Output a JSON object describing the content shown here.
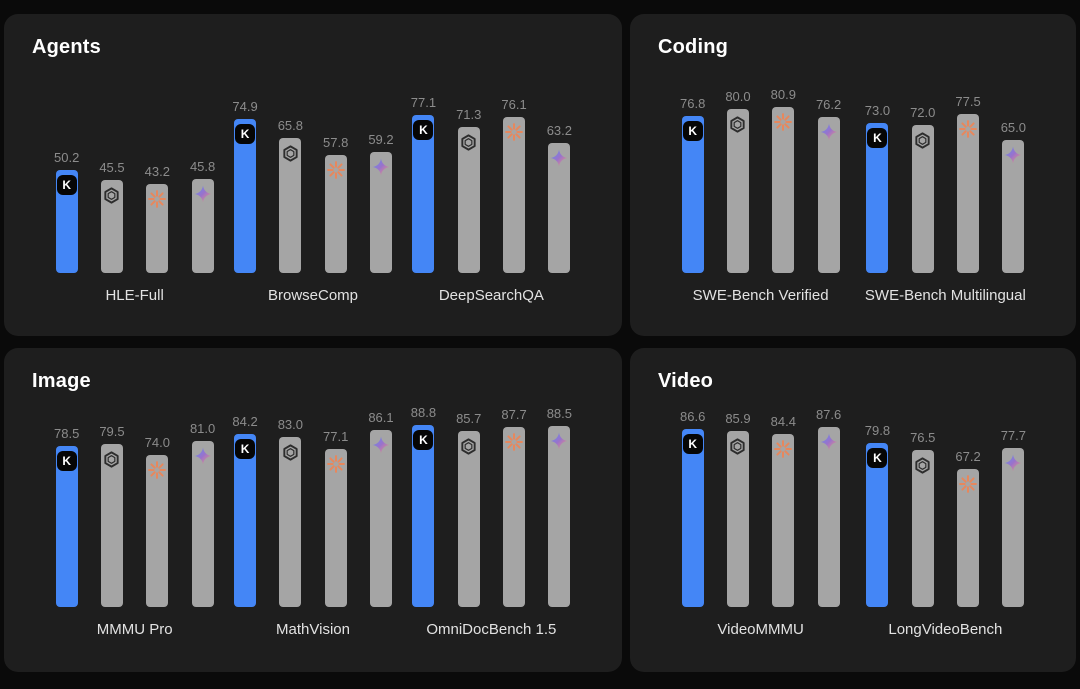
{
  "colors": {
    "page_bg": "#0a0a0a",
    "panel_bg": "#1e1e1e",
    "bar_blue": "#4486f6",
    "bar_gray": "#a5a5a5",
    "value_text": "#8c8c8c",
    "label_text": "#e2e2e2",
    "title_text": "#ffffff",
    "openai_dark": "#2d2d2d",
    "claude_orange": "#e8875c",
    "gemini_blue": "#5b8def",
    "gemini_purple": "#9b72cb",
    "gemini_orange": "#f49c74"
  },
  "models": [
    {
      "id": "kimi",
      "icon": "kimi-k-logo",
      "bar_color": "#4486f6",
      "letter": "K"
    },
    {
      "id": "openai",
      "icon": "openai-logo",
      "bar_color": "#a5a5a5"
    },
    {
      "id": "claude",
      "icon": "claude-sunburst-icon",
      "bar_color": "#a5a5a5"
    },
    {
      "id": "gemini",
      "icon": "gemini-star-icon",
      "bar_color": "#a5a5a5"
    }
  ],
  "chart_data": [
    {
      "type": "bar",
      "title": "Agents",
      "ylim": [
        0,
        100
      ],
      "grid": false,
      "legend_position": "none",
      "series_icons": [
        "kimi-k-logo",
        "openai-logo",
        "claude-sunburst-icon",
        "gemini-star-icon"
      ],
      "groups": [
        {
          "label": "HLE-Full",
          "values": [
            50.2,
            45.5,
            43.2,
            45.8
          ]
        },
        {
          "label": "BrowseComp",
          "values": [
            74.9,
            65.8,
            57.8,
            59.2
          ]
        },
        {
          "label": "DeepSearchQA",
          "values": [
            77.1,
            71.3,
            76.1,
            63.2
          ]
        }
      ]
    },
    {
      "type": "bar",
      "title": "Coding",
      "ylim": [
        0,
        100
      ],
      "grid": false,
      "legend_position": "none",
      "series_icons": [
        "kimi-k-logo",
        "openai-logo",
        "claude-sunburst-icon",
        "gemini-star-icon"
      ],
      "groups": [
        {
          "label": "SWE-Bench Verified",
          "values": [
            76.8,
            80.0,
            80.9,
            76.2
          ]
        },
        {
          "label": "SWE-Bench Multilingual",
          "values": [
            73.0,
            72.0,
            77.5,
            65.0
          ]
        }
      ]
    },
    {
      "type": "bar",
      "title": "Image",
      "ylim": [
        0,
        100
      ],
      "grid": false,
      "legend_position": "none",
      "series_icons": [
        "kimi-k-logo",
        "openai-logo",
        "claude-sunburst-icon",
        "gemini-star-icon"
      ],
      "groups": [
        {
          "label": "MMMU Pro",
          "values": [
            78.5,
            79.5,
            74.0,
            81.0
          ]
        },
        {
          "label": "MathVision",
          "values": [
            84.2,
            83.0,
            77.1,
            86.1
          ]
        },
        {
          "label": "OmniDocBench 1.5",
          "values": [
            88.8,
            85.7,
            87.7,
            88.5
          ]
        }
      ]
    },
    {
      "type": "bar",
      "title": "Video",
      "ylim": [
        0,
        100
      ],
      "grid": false,
      "legend_position": "none",
      "series_icons": [
        "kimi-k-logo",
        "openai-logo",
        "claude-sunburst-icon",
        "gemini-star-icon"
      ],
      "groups": [
        {
          "label": "VideoMMMU",
          "values": [
            86.6,
            85.9,
            84.4,
            87.6
          ]
        },
        {
          "label": "LongVideoBench",
          "values": [
            79.8,
            76.5,
            67.2,
            77.7
          ]
        }
      ]
    }
  ]
}
